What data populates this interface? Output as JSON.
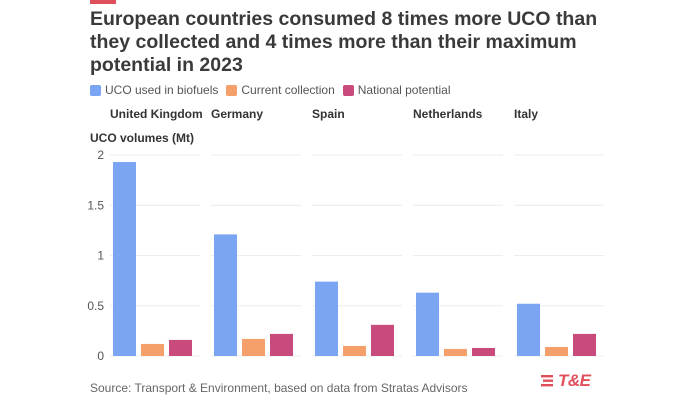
{
  "header": {
    "title": "European countries consumed 8 times more UCO than they collected and 4 times more than their maximum potential in 2023"
  },
  "legend": [
    {
      "label": "UCO used in biofuels",
      "color": "#7aa5f2"
    },
    {
      "label": "Current collection",
      "color": "#f5a06a"
    },
    {
      "label": "National potential",
      "color": "#c94a7c"
    }
  ],
  "footer": {
    "source": "Source: Transport & Environment, based on data from Stratas Advisors",
    "logo_text": "T&E"
  },
  "chart_data": {
    "type": "bar",
    "ylabel": "UCO volumes (Mt)",
    "ylim": [
      0,
      2
    ],
    "yticks": [
      0,
      0.5,
      1,
      1.5,
      2
    ],
    "ytick_labels": [
      "0",
      "0.5",
      "1",
      "1.5",
      "2"
    ],
    "grid": true,
    "categories": [
      "United Kingdom",
      "Germany",
      "Spain",
      "Netherlands",
      "Italy"
    ],
    "series": [
      {
        "name": "UCO used in biofuels",
        "color": "#7aa5f2",
        "values": [
          1.93,
          1.21,
          0.74,
          0.63,
          0.52
        ]
      },
      {
        "name": "Current collection",
        "color": "#f5a06a",
        "values": [
          0.12,
          0.17,
          0.1,
          0.07,
          0.09
        ]
      },
      {
        "name": "National potential",
        "color": "#c94a7c",
        "values": [
          0.16,
          0.22,
          0.31,
          0.08,
          0.22
        ]
      }
    ]
  }
}
